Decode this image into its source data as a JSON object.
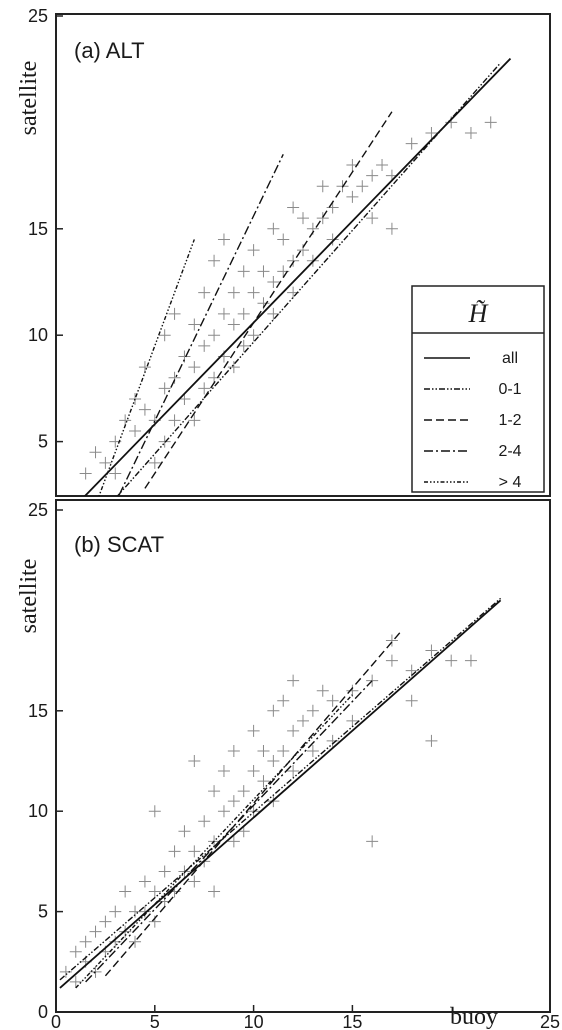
{
  "chart_data": [
    {
      "type": "scatter",
      "panel_label": "(a) ALT",
      "ylabel": "satellite",
      "xlim": [
        0,
        25
      ],
      "ylim": [
        0,
        25
      ],
      "yticks": [
        "5",
        "10",
        "15",
        "25"
      ],
      "ytick_values": [
        5,
        10,
        15,
        25
      ],
      "legend": {
        "title": "H̃",
        "placement": "lower-right",
        "entries": [
          "all",
          "0-1",
          "1-2",
          "2-4",
          "> 4"
        ]
      },
      "series": [
        {
          "name": "all",
          "style": "solid",
          "x": [
            1,
            23
          ],
          "y": [
            2,
            23
          ]
        },
        {
          "name": "0-1",
          "style": "dash-dot-dot",
          "x": [
            2.5,
            22.5
          ],
          "y": [
            1.8,
            22.8
          ]
        },
        {
          "name": "1-2",
          "style": "dashed",
          "x": [
            4.5,
            17
          ],
          "y": [
            2.8,
            20.5
          ]
        },
        {
          "name": "2-4",
          "style": "dash-dot",
          "x": [
            3.2,
            11.5
          ],
          "y": [
            2.5,
            18.5
          ]
        },
        {
          "name": "> 4",
          "style": "dash-dot-dot-dot",
          "x": [
            2,
            7
          ],
          "y": [
            2,
            14.5
          ]
        }
      ],
      "scatter_cloud": [
        [
          1.5,
          3.5
        ],
        [
          2,
          4.5
        ],
        [
          2.5,
          4
        ],
        [
          3,
          5
        ],
        [
          3,
          3.5
        ],
        [
          3.5,
          6
        ],
        [
          4,
          5.5
        ],
        [
          4,
          7
        ],
        [
          4.5,
          6.5
        ],
        [
          4.5,
          8.5
        ],
        [
          5,
          6
        ],
        [
          5,
          4
        ],
        [
          5.5,
          7.5
        ],
        [
          5.5,
          10
        ],
        [
          5.5,
          5
        ],
        [
          6,
          8
        ],
        [
          6,
          6
        ],
        [
          6,
          11
        ],
        [
          6.5,
          9
        ],
        [
          6.5,
          7
        ],
        [
          7,
          8.5
        ],
        [
          7,
          10.5
        ],
        [
          7,
          6
        ],
        [
          7.5,
          9.5
        ],
        [
          7.5,
          12
        ],
        [
          7.5,
          7.5
        ],
        [
          8,
          10
        ],
        [
          8,
          8
        ],
        [
          8,
          13.5
        ],
        [
          8.5,
          11
        ],
        [
          8.5,
          9
        ],
        [
          8.5,
          14.5
        ],
        [
          9,
          10.5
        ],
        [
          9,
          12
        ],
        [
          9,
          8.5
        ],
        [
          9.5,
          11
        ],
        [
          9.5,
          13
        ],
        [
          9.5,
          9.5
        ],
        [
          10,
          12
        ],
        [
          10,
          10
        ],
        [
          10,
          14
        ],
        [
          10.5,
          11.5
        ],
        [
          10.5,
          13
        ],
        [
          11,
          12.5
        ],
        [
          11,
          11
        ],
        [
          11,
          15
        ],
        [
          11.5,
          13
        ],
        [
          11.5,
          14.5
        ],
        [
          12,
          13.5
        ],
        [
          12,
          12
        ],
        [
          12,
          16
        ],
        [
          12.5,
          14
        ],
        [
          12.5,
          15.5
        ],
        [
          13,
          15
        ],
        [
          13,
          13.5
        ],
        [
          13.5,
          15.5
        ],
        [
          13.5,
          17
        ],
        [
          14,
          16
        ],
        [
          14,
          14.5
        ],
        [
          14.5,
          17
        ],
        [
          15,
          16.5
        ],
        [
          15,
          18
        ],
        [
          15.5,
          17
        ],
        [
          16,
          17.5
        ],
        [
          16,
          15.5
        ],
        [
          16.5,
          18
        ],
        [
          17,
          17.5
        ],
        [
          17,
          15
        ],
        [
          18,
          19
        ],
        [
          19,
          19.5
        ],
        [
          20,
          20
        ],
        [
          21,
          19.5
        ],
        [
          22,
          20
        ]
      ]
    },
    {
      "type": "scatter",
      "panel_label": "(b) SCAT",
      "xlabel": "buoy",
      "ylabel": "satellite",
      "xlim": [
        0,
        25
      ],
      "ylim": [
        0,
        25
      ],
      "xticks": [
        "0",
        "5",
        "10",
        "15",
        "25"
      ],
      "xtick_values": [
        0,
        5,
        10,
        15,
        25
      ],
      "yticks": [
        "0",
        "5",
        "10",
        "15",
        "25"
      ],
      "ytick_values": [
        0,
        5,
        10,
        15,
        25
      ],
      "series": [
        {
          "name": "all",
          "style": "solid",
          "x": [
            0.2,
            22.5
          ],
          "y": [
            1.2,
            20.5
          ]
        },
        {
          "name": "0-1",
          "style": "dash-dot-dot",
          "x": [
            0.2,
            22.5
          ],
          "y": [
            1.6,
            20.6
          ]
        },
        {
          "name": "1-2",
          "style": "dashed",
          "x": [
            2.5,
            17.5
          ],
          "y": [
            1.8,
            19
          ]
        },
        {
          "name": "2-4",
          "style": "dash-dot",
          "x": [
            1.5,
            16
          ],
          "y": [
            1.5,
            16.5
          ]
        },
        {
          "name": "> 4",
          "style": "dash-dot-dot-dot",
          "x": [
            1,
            15
          ],
          "y": [
            1.2,
            15.8
          ]
        }
      ],
      "scatter_cloud": [
        [
          0.5,
          2
        ],
        [
          1,
          3
        ],
        [
          1,
          1.5
        ],
        [
          1.5,
          3.5
        ],
        [
          1.5,
          2.5
        ],
        [
          2,
          4
        ],
        [
          2,
          2
        ],
        [
          2.5,
          3
        ],
        [
          2.5,
          4.5
        ],
        [
          3,
          5
        ],
        [
          3,
          3.5
        ],
        [
          3.5,
          4
        ],
        [
          3.5,
          6
        ],
        [
          4,
          5
        ],
        [
          4,
          3.5
        ],
        [
          4.5,
          6.5
        ],
        [
          4.5,
          5
        ],
        [
          5,
          10
        ],
        [
          5,
          6
        ],
        [
          5,
          4.5
        ],
        [
          5.5,
          7
        ],
        [
          5.5,
          5.5
        ],
        [
          6,
          8
        ],
        [
          6,
          6
        ],
        [
          6.5,
          9
        ],
        [
          6.5,
          7
        ],
        [
          7,
          12.5
        ],
        [
          7,
          8
        ],
        [
          7,
          6.5
        ],
        [
          7.5,
          9.5
        ],
        [
          7.5,
          7.5
        ],
        [
          8,
          11
        ],
        [
          8,
          8.5
        ],
        [
          8,
          6
        ],
        [
          8.5,
          10
        ],
        [
          8.5,
          12
        ],
        [
          9,
          10.5
        ],
        [
          9,
          8.5
        ],
        [
          9,
          13
        ],
        [
          9.5,
          11
        ],
        [
          9.5,
          9
        ],
        [
          10,
          12
        ],
        [
          10,
          10
        ],
        [
          10,
          14
        ],
        [
          10.5,
          11.5
        ],
        [
          10.5,
          13
        ],
        [
          11,
          12.5
        ],
        [
          11,
          10.5
        ],
        [
          11,
          15
        ],
        [
          11.5,
          13
        ],
        [
          11.5,
          15.5
        ],
        [
          12,
          14
        ],
        [
          12,
          12
        ],
        [
          12,
          16.5
        ],
        [
          12.5,
          14.5
        ],
        [
          13,
          15
        ],
        [
          13,
          13
        ],
        [
          13.5,
          16
        ],
        [
          14,
          15.5
        ],
        [
          14,
          13.5
        ],
        [
          15,
          16
        ],
        [
          15,
          14.5
        ],
        [
          16,
          8.5
        ],
        [
          16,
          16.5
        ],
        [
          17,
          18.5
        ],
        [
          17,
          17.5
        ],
        [
          18,
          15.5
        ],
        [
          18,
          17
        ],
        [
          19,
          18
        ],
        [
          19,
          13.5
        ],
        [
          20,
          17.5
        ],
        [
          21,
          17.5
        ]
      ]
    }
  ]
}
